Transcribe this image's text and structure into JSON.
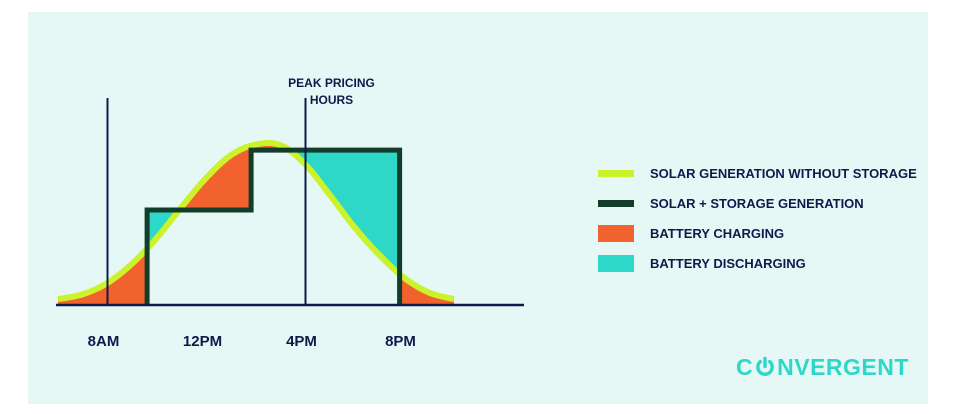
{
  "chart_data": {
    "type": "area",
    "title": "",
    "xlabel": "",
    "ylabel": "",
    "x_ticks": [
      "8AM",
      "12PM",
      "4PM",
      "8PM"
    ],
    "xlim_hours": [
      3,
      11
    ],
    "annotation": {
      "lines": [
        "PEAK PRICING",
        "HOURS"
      ],
      "at_hours": [
        4,
        8
      ]
    },
    "series": [
      {
        "name": "SOLAR GENERATION WITHOUT STORAGE",
        "type": "line",
        "color": "#ccf22b",
        "x": [
          3,
          3.5,
          4,
          4.5,
          5,
          5.5,
          6,
          6.5,
          7,
          7.5,
          8,
          8.5,
          9,
          9.5,
          10,
          10.5,
          11
        ],
        "values": [
          0.03,
          0.06,
          0.13,
          0.25,
          0.41,
          0.6,
          0.78,
          0.92,
          0.985,
          0.98,
          0.86,
          0.67,
          0.47,
          0.3,
          0.16,
          0.07,
          0.03
        ]
      },
      {
        "name": "SOLAR + STORAGE GENERATION",
        "type": "step",
        "color": "#123d2a",
        "x": [
          4.8,
          4.8,
          6.9,
          6.9,
          9.9,
          9.9
        ],
        "values": [
          0,
          0.58,
          0.58,
          0.95,
          0.95,
          0
        ]
      }
    ],
    "legend": [
      {
        "label": "SOLAR GENERATION WITHOUT STORAGE",
        "swatch": "line-lime"
      },
      {
        "label": "SOLAR + STORAGE GENERATION",
        "swatch": "line-dark"
      },
      {
        "label": "BATTERY CHARGING",
        "swatch": "box-orange",
        "color": "#f2622e"
      },
      {
        "label": "BATTERY DISCHARGING",
        "swatch": "box-teal",
        "color": "#2ed8c8"
      }
    ],
    "legend_position": "right"
  },
  "brand": {
    "before": "C",
    "after": "NVERGENT"
  }
}
